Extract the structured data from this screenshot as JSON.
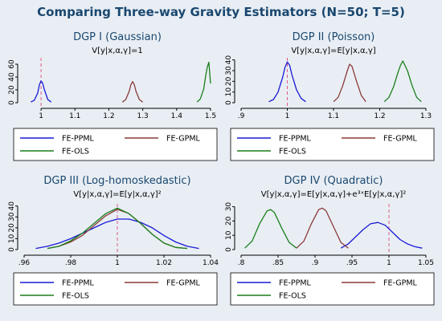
{
  "title": "Comparing Three-way Gravity Estimators (N=50; T=5)",
  "colors": {
    "FE-PPML": "#1a1ad6",
    "FE-GPML": "#8c3a3a",
    "FE-OLS": "#1a7f1a",
    "reference": "#e05a8c"
  },
  "chart_data": [
    {
      "type": "line",
      "title": "DGP I (Gaussian)",
      "subtitle": "V[y|x,α,γ]=1",
      "xlim": [
        0.95,
        1.5
      ],
      "ylim": [
        0,
        70
      ],
      "xticks": [
        1,
        1.1,
        1.2,
        1.3,
        1.4,
        1.5
      ],
      "xtick_labels": [
        "1",
        "1.1",
        "1.2",
        "1.3",
        "1.4",
        "1.5"
      ],
      "yticks": [
        0,
        20,
        40,
        60
      ],
      "ytick_labels": [
        "0",
        "20",
        "40",
        "60"
      ],
      "ref_x": 1,
      "series": [
        {
          "name": "FE-PPML",
          "x": [
            0.97,
            0.98,
            0.99,
            0.995,
            1.0,
            1.005,
            1.01,
            1.02,
            1.03
          ],
          "y": [
            1,
            4,
            15,
            28,
            34,
            30,
            20,
            5,
            1
          ]
        },
        {
          "name": "FE-GPML",
          "x": [
            1.24,
            1.25,
            1.26,
            1.265,
            1.27,
            1.275,
            1.28,
            1.29,
            1.3
          ],
          "y": [
            1,
            5,
            18,
            28,
            33,
            28,
            18,
            5,
            1
          ]
        },
        {
          "name": "FE-OLS",
          "x": [
            1.46,
            1.47,
            1.48,
            1.485,
            1.49,
            1.495,
            1.5
          ],
          "y": [
            1,
            6,
            22,
            40,
            55,
            63,
            30
          ]
        }
      ]
    },
    {
      "type": "line",
      "title": "DGP II (Poisson)",
      "subtitle": "V[y|x,α,γ]=E[y|x,α,γ]",
      "xlim": [
        0.9,
        1.3
      ],
      "ylim": [
        0,
        42
      ],
      "xticks": [
        0.9,
        1,
        1.1,
        1.2,
        1.3
      ],
      "xtick_labels": [
        ".9",
        "1",
        "1.1",
        "1.2",
        "1.3"
      ],
      "yticks": [
        0,
        10,
        20,
        30,
        40
      ],
      "ytick_labels": [
        "0",
        "10",
        "20",
        "30",
        "40"
      ],
      "ref_x": 1,
      "series": [
        {
          "name": "FE-PPML",
          "x": [
            0.96,
            0.97,
            0.98,
            0.99,
            0.995,
            1.0,
            1.005,
            1.01,
            1.02,
            1.03,
            1.04
          ],
          "y": [
            1,
            3,
            10,
            24,
            33,
            38,
            35,
            26,
            12,
            4,
            1
          ]
        },
        {
          "name": "FE-GPML",
          "x": [
            1.1,
            1.11,
            1.12,
            1.13,
            1.135,
            1.14,
            1.15,
            1.16,
            1.17
          ],
          "y": [
            1,
            5,
            16,
            30,
            36,
            34,
            20,
            7,
            1
          ]
        },
        {
          "name": "FE-OLS",
          "x": [
            1.21,
            1.22,
            1.23,
            1.24,
            1.245,
            1.25,
            1.26,
            1.27,
            1.28,
            1.29
          ],
          "y": [
            1,
            5,
            15,
            29,
            35,
            39,
            30,
            16,
            5,
            1
          ]
        }
      ]
    },
    {
      "type": "line",
      "title": "DGP III (Log-homoskedastic)",
      "subtitle": "V[y|x,α,γ]=E[y|x,α,γ]²",
      "xlim": [
        0.96,
        1.04
      ],
      "ylim": [
        0,
        42
      ],
      "xticks": [
        0.96,
        0.98,
        1,
        1.02,
        1.04
      ],
      "xtick_labels": [
        ".96",
        ".98",
        "1",
        "1.02",
        "1.04"
      ],
      "yticks": [
        0,
        10,
        20,
        30,
        40
      ],
      "ytick_labels": [
        "0",
        "10",
        "20",
        "30",
        "40"
      ],
      "ref_x": 1,
      "series": [
        {
          "name": "FE-PPML",
          "x": [
            0.965,
            0.97,
            0.975,
            0.98,
            0.985,
            0.99,
            0.995,
            1.0,
            1.005,
            1.01,
            1.015,
            1.02,
            1.025,
            1.03,
            1.035
          ],
          "y": [
            1,
            3,
            6,
            10,
            15,
            20,
            25,
            28,
            28,
            25,
            20,
            13,
            7,
            3,
            1
          ]
        },
        {
          "name": "FE-GPML",
          "x": [
            0.97,
            0.975,
            0.98,
            0.985,
            0.99,
            0.995,
            1.0,
            1.005,
            1.01,
            1.015,
            1.02,
            1.025,
            1.03
          ],
          "y": [
            1,
            3,
            7,
            13,
            22,
            31,
            37,
            33,
            24,
            14,
            6,
            2,
            1
          ]
        },
        {
          "name": "FE-OLS",
          "x": [
            0.97,
            0.975,
            0.98,
            0.985,
            0.99,
            0.995,
            1.0,
            1.005,
            1.01,
            1.015,
            1.02,
            1.025,
            1.03
          ],
          "y": [
            1,
            3,
            8,
            15,
            24,
            33,
            38,
            33,
            24,
            14,
            6,
            2,
            1
          ]
        }
      ]
    },
    {
      "type": "line",
      "title": "DGP IV (Quadratic)",
      "subtitle": "V[y|x,α,γ]=E[y|x,α,γ]+e³ˣE[y|x,α,γ]²",
      "xlim": [
        0.8,
        1.05
      ],
      "ylim": [
        0,
        32
      ],
      "xticks": [
        0.8,
        0.85,
        0.9,
        0.95,
        1,
        1.05
      ],
      "xtick_labels": [
        ".8",
        ".85",
        ".9",
        ".95",
        "1",
        "1.05"
      ],
      "yticks": [
        0,
        10,
        20,
        30
      ],
      "ytick_labels": [
        "0",
        "10",
        "20",
        "30"
      ],
      "ref_x": 1,
      "series": [
        {
          "name": "FE-PPML",
          "x": [
            0.935,
            0.945,
            0.955,
            0.965,
            0.975,
            0.985,
            0.995,
            1.005,
            1.015,
            1.025,
            1.035,
            1.045
          ],
          "y": [
            1,
            4,
            9,
            14,
            18,
            19,
            17,
            12,
            7,
            4,
            2,
            1
          ]
        },
        {
          "name": "FE-GPML",
          "x": [
            0.875,
            0.885,
            0.895,
            0.905,
            0.91,
            0.915,
            0.925,
            0.935,
            0.945
          ],
          "y": [
            1,
            6,
            18,
            28,
            29,
            27,
            16,
            5,
            1
          ]
        },
        {
          "name": "FE-OLS",
          "x": [
            0.805,
            0.815,
            0.825,
            0.835,
            0.84,
            0.845,
            0.855,
            0.865,
            0.875
          ],
          "y": [
            1,
            6,
            18,
            27,
            28,
            26,
            15,
            5,
            1
          ]
        }
      ]
    }
  ]
}
